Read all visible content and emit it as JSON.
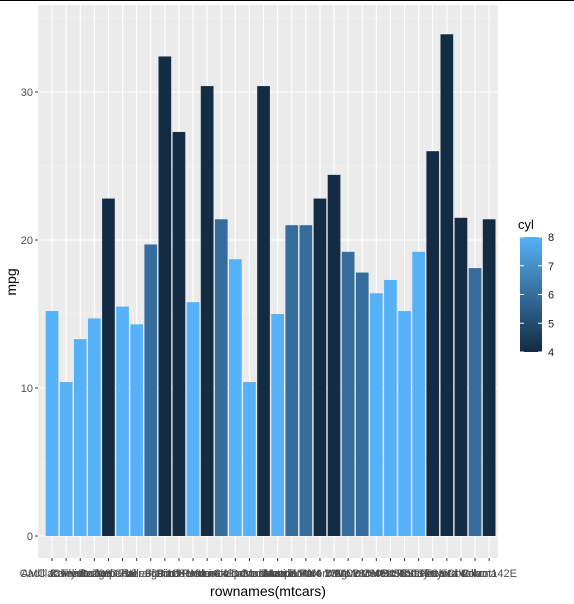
{
  "chart_data": {
    "type": "bar",
    "xlabel": "rownames(mtcars)",
    "ylabel": "mpg",
    "ylim": [
      0,
      35
    ],
    "y_ticks": [
      0,
      10,
      20,
      30
    ],
    "grid": true,
    "legend_position": "right",
    "legend": {
      "title": "cyl",
      "type": "colorbar",
      "min": 4,
      "max": 8,
      "low_color": "#132B43",
      "high_color": "#56B1F7",
      "ticks": [
        4,
        5,
        6,
        7,
        8
      ]
    },
    "categories": [
      "AMC Javelin",
      "Cadillac Fleetwood",
      "Camaro Z28",
      "Chrysler Imperial",
      "Datsun 710",
      "Dodge Challenger",
      "Duster 360",
      "Ferrari Dino",
      "Fiat 128",
      "Fiat X1-9",
      "Ford Pantera L",
      "Honda Civic",
      "Hornet 4 Drive",
      "Hornet Sportabout",
      "Lincoln Continental",
      "Lotus Europa",
      "Maserati Bora",
      "Mazda RX4",
      "Mazda RX4 Wag",
      "Merc 230",
      "Merc 240D",
      "Merc 280",
      "Merc 280C",
      "Merc 450SE",
      "Merc 450SL",
      "Merc 450SLC",
      "Pontiac Firebird",
      "Porsche 914-2",
      "Toyota Corolla",
      "Toyota Corona",
      "Valiant",
      "Volvo 142E"
    ],
    "values": [
      15.2,
      10.4,
      13.3,
      14.7,
      22.8,
      15.5,
      14.3,
      19.7,
      32.4,
      27.3,
      15.8,
      30.4,
      21.4,
      18.7,
      10.4,
      30.4,
      15.0,
      21.0,
      21.0,
      22.8,
      24.4,
      19.2,
      17.8,
      16.4,
      17.3,
      15.2,
      19.2,
      26.0,
      33.9,
      21.5,
      18.1,
      21.4
    ],
    "cyl": [
      8,
      8,
      8,
      8,
      4,
      8,
      8,
      6,
      4,
      4,
      8,
      4,
      6,
      8,
      8,
      4,
      8,
      6,
      6,
      4,
      4,
      6,
      6,
      8,
      8,
      8,
      8,
      4,
      4,
      4,
      6,
      4
    ]
  }
}
